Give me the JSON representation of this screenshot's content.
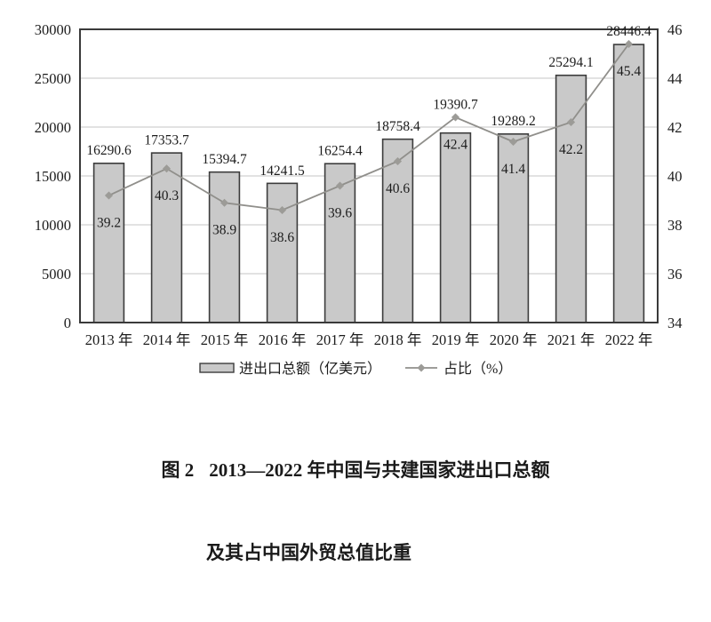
{
  "colors": {
    "bar_fill": "#c9c9c9",
    "bar_border": "#3c3c3c",
    "frame": "#3a3a3a",
    "grid": "#c6c6c6",
    "line": "#908f8b",
    "marker": "#9c9b97",
    "text": "#1c1c1c"
  },
  "chart_data": {
    "type": "bar+line",
    "categories": [
      "2013 年",
      "2014 年",
      "2015 年",
      "2016 年",
      "2017 年",
      "2018 年",
      "2019 年",
      "2020 年",
      "2021 年",
      "2022 年"
    ],
    "series": [
      {
        "name": "进出口总额（亿美元）",
        "type": "bar",
        "axis": "left",
        "values": [
          16290.6,
          17353.7,
          15394.7,
          14241.5,
          16254.4,
          18758.4,
          19390.7,
          19289.2,
          25294.1,
          28446.4
        ]
      },
      {
        "name": "占比（%）",
        "type": "line",
        "axis": "right",
        "values": [
          39.2,
          40.3,
          38.9,
          38.6,
          39.6,
          40.6,
          42.4,
          41.4,
          42.2,
          45.4
        ]
      }
    ],
    "y_left": {
      "min": 0,
      "max": 30000,
      "ticks": [
        0,
        5000,
        10000,
        15000,
        20000,
        25000,
        30000
      ]
    },
    "y_right": {
      "min": 34,
      "max": 46,
      "ticks": [
        34,
        36,
        38,
        40,
        42,
        44,
        46
      ]
    },
    "grid": "horizontal",
    "legend_position": "bottom"
  },
  "caption": {
    "prefix": "图 2",
    "line1": "2013—2022 年中国与共建国家进出口总额",
    "line2": "及其占中国外贸总值比重"
  }
}
